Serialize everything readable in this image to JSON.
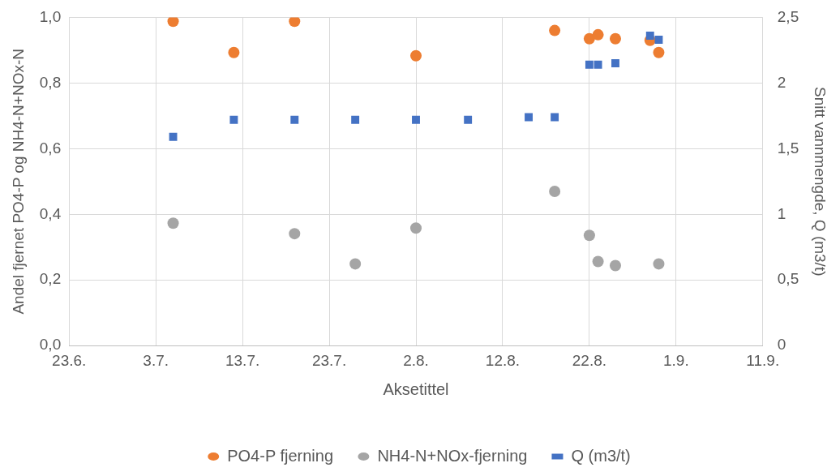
{
  "chart_data": {
    "type": "scatter",
    "xlabel": "Aksetittel",
    "ylabel": "Andel fjernet PO4-P og NH4-N+NOx-N",
    "y2label": "Snitt vannmengde, Q (m3/t)",
    "xlim": [
      "--06-23",
      "--09-11"
    ],
    "xticks": [
      {
        "value": "--06-23",
        "label": "23.6."
      },
      {
        "value": "--07-03",
        "label": "3.7."
      },
      {
        "value": "--07-13",
        "label": "13.7."
      },
      {
        "value": "--07-23",
        "label": "23.7."
      },
      {
        "value": "--08-02",
        "label": "2.8."
      },
      {
        "value": "--08-12",
        "label": "12.8."
      },
      {
        "value": "--08-22",
        "label": "22.8."
      },
      {
        "value": "--09-01",
        "label": "1.9."
      },
      {
        "value": "--09-11",
        "label": "11.9."
      }
    ],
    "ylim": [
      0,
      1
    ],
    "yticks": [
      {
        "value": 0,
        "label": "0,0"
      },
      {
        "value": 0.2,
        "label": "0,2"
      },
      {
        "value": 0.4,
        "label": "0,4"
      },
      {
        "value": 0.6,
        "label": "0,6"
      },
      {
        "value": 0.8,
        "label": "0,8"
      },
      {
        "value": 1,
        "label": "1,0"
      }
    ],
    "y2lim": [
      0,
      2.5
    ],
    "y2ticks": [
      0,
      {
        "value": 0.5,
        "label": "0,5"
      },
      1,
      {
        "value": 1.5,
        "label": "1,5"
      },
      2,
      {
        "value": 2.5,
        "label": "2,5"
      }
    ],
    "grid": true,
    "legend": "bottom",
    "series": [
      {
        "name": "PO4-P fjerning",
        "color": "#ed7d31",
        "marker": "circle",
        "x": [
          "--07-05",
          "--07-12",
          "--07-19",
          "--08-02",
          "--08-18",
          "--08-22",
          "--08-23",
          "--08-25",
          "--08-29",
          "--08-30"
        ],
        "values": [
          0.988,
          0.893,
          0.988,
          0.883,
          0.96,
          0.935,
          0.947,
          0.935,
          0.93,
          0.893
        ]
      },
      {
        "name": "NH4-N+NOx-fjerning",
        "color": "#a5a5a5",
        "marker": "circle",
        "x": [
          "--07-05",
          "--07-19",
          "--07-26",
          "--08-02",
          "--08-18",
          "--08-22",
          "--08-23",
          "--08-25",
          "--08-30"
        ],
        "values": [
          0.373,
          0.341,
          0.249,
          0.358,
          0.47,
          0.336,
          0.256,
          0.244,
          0.249
        ]
      },
      {
        "name": "Q (m3/t)",
        "color": "#4472c4",
        "marker": "square",
        "axis": "y2",
        "x": [
          "--07-05",
          "--07-12",
          "--07-19",
          "--07-26",
          "--08-02",
          "--08-08",
          "--08-15",
          "--08-18",
          "--08-22",
          "--08-23",
          "--08-25",
          "--08-29",
          "--08-30"
        ],
        "values": [
          1.59,
          1.72,
          1.72,
          1.72,
          1.72,
          1.72,
          1.74,
          1.74,
          2.14,
          2.14,
          2.15,
          2.36,
          2.33
        ]
      }
    ]
  }
}
